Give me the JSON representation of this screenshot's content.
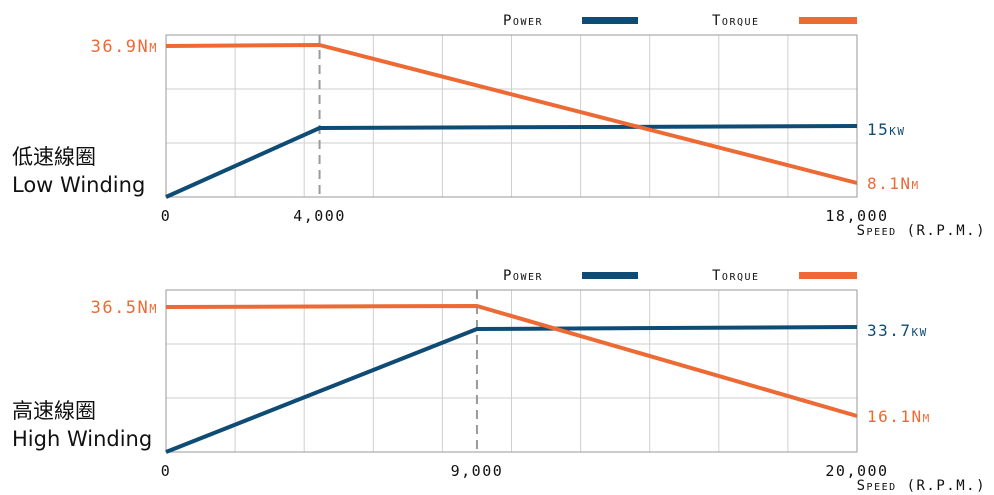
{
  "chart_data": [
    {
      "type": "line",
      "winding_zh": "低速線圈",
      "winding_en": "Low Winding",
      "x_ticks": [
        "0",
        "4,000",
        "18,000"
      ],
      "xlabel": "Speed (R.P.M.)",
      "legend": {
        "power": "Power",
        "torque": "Torque"
      },
      "x_max": 18000,
      "series": [
        {
          "name": "Power",
          "color": "#0f4c75",
          "unit": "kW",
          "points": [
            [
              0,
              0
            ],
            [
              4000,
              14.1
            ],
            [
              18000,
              15
            ]
          ],
          "end_label": "15kw"
        },
        {
          "name": "Torque",
          "color": "#ed6a35",
          "unit": "Nm",
          "points": [
            [
              0,
              36.9
            ],
            [
              4000,
              37.1
            ],
            [
              18000,
              8.1
            ]
          ],
          "start_label": "36.9Nm",
          "end_label": "8.1Nm"
        }
      ]
    },
    {
      "type": "line",
      "winding_zh": "高速線圈",
      "winding_en": "High Winding",
      "x_ticks": [
        "0",
        "9,000",
        "20,000"
      ],
      "xlabel": "Speed (R.P.M.)",
      "legend": {
        "power": "Power",
        "torque": "Torque"
      },
      "x_max": 20000,
      "series": [
        {
          "name": "Power",
          "color": "#0f4c75",
          "unit": "kW",
          "points": [
            [
              0,
              0
            ],
            [
              9000,
              33.2
            ],
            [
              20000,
              33.7
            ]
          ],
          "end_label": "33.7kw"
        },
        {
          "name": "Torque",
          "color": "#ed6a35",
          "unit": "Nm",
          "points": [
            [
              0,
              36.5
            ],
            [
              9000,
              36.6
            ],
            [
              20000,
              16.1
            ]
          ],
          "start_label": "36.5Nm",
          "end_label": "16.1Nm"
        }
      ]
    }
  ]
}
